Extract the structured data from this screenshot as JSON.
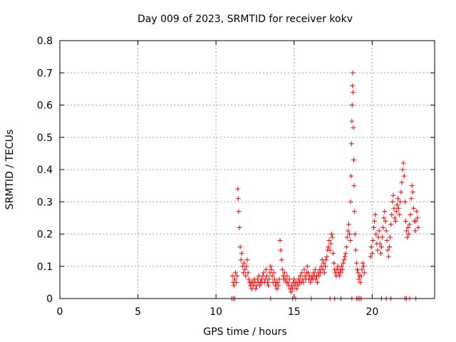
{
  "chart_data": {
    "type": "scatter",
    "title": "Day 009 of 2023, SRMTID for receiver kokv",
    "xlabel": "GPS time / hours",
    "ylabel": "SRMTID / TECUs",
    "xlim": [
      0,
      24
    ],
    "ylim": [
      0,
      0.8
    ],
    "x_ticks": [
      0,
      5,
      10,
      15,
      20
    ],
    "y_ticks": [
      0,
      0.1,
      0.2,
      0.3,
      0.4,
      0.5,
      0.6,
      0.7,
      0.8
    ],
    "x_tick_labels": [
      "0",
      "5",
      "10",
      "15",
      "20"
    ],
    "y_tick_labels": [
      "0",
      "0.1",
      "0.2",
      "0.3",
      "0.4",
      "0.5",
      "0.6",
      "0.7",
      "0.8"
    ],
    "grid": true,
    "marker": "+",
    "color": "#ff0000",
    "series": [
      {
        "name": "SRMTID",
        "points": [
          [
            11.05,
            0.07
          ],
          [
            11.1,
            0.05
          ],
          [
            11.15,
            0.04
          ],
          [
            11.2,
            0.06
          ],
          [
            11.25,
            0.08
          ],
          [
            11.3,
            0.05
          ],
          [
            11.35,
            0.07
          ],
          [
            11.4,
            0.34
          ],
          [
            11.42,
            0.31
          ],
          [
            11.45,
            0.27
          ],
          [
            11.5,
            0.22
          ],
          [
            11.55,
            0.16
          ],
          [
            11.6,
            0.12
          ],
          [
            11.65,
            0.14
          ],
          [
            11.7,
            0.1
          ],
          [
            11.75,
            0.08
          ],
          [
            11.8,
            0.11
          ],
          [
            11.85,
            0.09
          ],
          [
            11.9,
            0.07
          ],
          [
            11.95,
            0.1
          ],
          [
            12.0,
            0.12
          ],
          [
            12.05,
            0.08
          ],
          [
            12.1,
            0.06
          ],
          [
            12.15,
            0.05
          ],
          [
            12.2,
            0.04
          ],
          [
            12.25,
            0.05
          ],
          [
            12.3,
            0.03
          ],
          [
            12.35,
            0.05
          ],
          [
            12.4,
            0.04
          ],
          [
            12.45,
            0.06
          ],
          [
            12.5,
            0.05
          ],
          [
            12.55,
            0.03
          ],
          [
            12.6,
            0.04
          ],
          [
            12.65,
            0.06
          ],
          [
            12.7,
            0.05
          ],
          [
            12.75,
            0.07
          ],
          [
            12.8,
            0.04
          ],
          [
            12.85,
            0.05
          ],
          [
            12.9,
            0.06
          ],
          [
            12.95,
            0.05
          ],
          [
            13.0,
            0.07
          ],
          [
            13.05,
            0.08
          ],
          [
            13.1,
            0.05
          ],
          [
            13.15,
            0.06
          ],
          [
            13.2,
            0.09
          ],
          [
            13.25,
            0.07
          ],
          [
            13.3,
            0.05
          ],
          [
            13.35,
            0.04
          ],
          [
            13.4,
            0.06
          ],
          [
            13.45,
            0.08
          ],
          [
            13.5,
            0.1
          ],
          [
            13.55,
            0.09
          ],
          [
            13.6,
            0.07
          ],
          [
            13.65,
            0.05
          ],
          [
            13.7,
            0.08
          ],
          [
            13.75,
            0.06
          ],
          [
            13.8,
            0.04
          ],
          [
            13.85,
            0.05
          ],
          [
            13.9,
            0.03
          ],
          [
            13.95,
            0.05
          ],
          [
            14.0,
            0.04
          ],
          [
            14.05,
            0.06
          ],
          [
            14.1,
            0.18
          ],
          [
            14.15,
            0.15
          ],
          [
            14.2,
            0.12
          ],
          [
            14.25,
            0.09
          ],
          [
            14.3,
            0.07
          ],
          [
            14.35,
            0.06
          ],
          [
            14.4,
            0.08
          ],
          [
            14.45,
            0.06
          ],
          [
            14.5,
            0.05
          ],
          [
            14.55,
            0.07
          ],
          [
            14.6,
            0.05
          ],
          [
            14.65,
            0.04
          ],
          [
            14.7,
            0.06
          ],
          [
            14.75,
            0.03
          ],
          [
            14.8,
            0.02
          ],
          [
            14.85,
            0.04
          ],
          [
            14.9,
            0.03
          ],
          [
            14.95,
            0.05
          ],
          [
            15.0,
            0.06
          ],
          [
            15.05,
            0.04
          ],
          [
            15.1,
            0.05
          ],
          [
            15.15,
            0.03
          ],
          [
            15.2,
            0.05
          ],
          [
            15.25,
            0.04
          ],
          [
            15.3,
            0.06
          ],
          [
            15.35,
            0.05
          ],
          [
            15.4,
            0.07
          ],
          [
            15.45,
            0.05
          ],
          [
            15.5,
            0.08
          ],
          [
            15.55,
            0.06
          ],
          [
            15.6,
            0.05
          ],
          [
            15.65,
            0.09
          ],
          [
            15.7,
            0.07
          ],
          [
            15.75,
            0.06
          ],
          [
            15.8,
            0.08
          ],
          [
            15.85,
            0.1
          ],
          [
            15.9,
            0.08
          ],
          [
            15.95,
            0.06
          ],
          [
            16.0,
            0.07
          ],
          [
            16.05,
            0.05
          ],
          [
            16.1,
            0.06
          ],
          [
            16.15,
            0.07
          ],
          [
            16.2,
            0.06
          ],
          [
            16.25,
            0.08
          ],
          [
            16.3,
            0.07
          ],
          [
            16.35,
            0.09
          ],
          [
            16.4,
            0.06
          ],
          [
            16.45,
            0.07
          ],
          [
            16.5,
            0.05
          ],
          [
            16.55,
            0.08
          ],
          [
            16.6,
            0.07
          ],
          [
            16.65,
            0.09
          ],
          [
            16.7,
            0.08
          ],
          [
            16.75,
            0.1
          ],
          [
            16.8,
            0.12
          ],
          [
            16.85,
            0.09
          ],
          [
            16.9,
            0.11
          ],
          [
            16.95,
            0.08
          ],
          [
            17.0,
            0.1
          ],
          [
            17.05,
            0.12
          ],
          [
            17.1,
            0.13
          ],
          [
            17.15,
            0.15
          ],
          [
            17.2,
            0.16
          ],
          [
            17.25,
            0.18
          ],
          [
            17.3,
            0.15
          ],
          [
            17.35,
            0.17
          ],
          [
            17.4,
            0.2
          ],
          [
            17.45,
            0.19
          ],
          [
            17.5,
            0.14
          ],
          [
            17.55,
            0.11
          ],
          [
            17.6,
            0.09
          ],
          [
            17.65,
            0.08
          ],
          [
            17.7,
            0.07
          ],
          [
            17.75,
            0.09
          ],
          [
            17.8,
            0.1
          ],
          [
            17.85,
            0.08
          ],
          [
            17.9,
            0.07
          ],
          [
            17.95,
            0.09
          ],
          [
            18.0,
            0.08
          ],
          [
            18.05,
            0.1
          ],
          [
            18.1,
            0.09
          ],
          [
            18.15,
            0.11
          ],
          [
            18.2,
            0.12
          ],
          [
            18.25,
            0.13
          ],
          [
            18.3,
            0.14
          ],
          [
            18.35,
            0.16
          ],
          [
            18.4,
            0.19
          ],
          [
            18.45,
            0.21
          ],
          [
            18.5,
            0.23
          ],
          [
            18.55,
            0.2
          ],
          [
            18.6,
            0.18
          ],
          [
            18.62,
            0.3
          ],
          [
            18.65,
            0.38
          ],
          [
            18.68,
            0.48
          ],
          [
            18.7,
            0.55
          ],
          [
            18.72,
            0.6
          ],
          [
            18.74,
            0.66
          ],
          [
            18.76,
            0.7
          ],
          [
            18.78,
            0.64
          ],
          [
            18.8,
            0.53
          ],
          [
            18.82,
            0.43
          ],
          [
            18.84,
            0.35
          ],
          [
            18.86,
            0.27
          ],
          [
            18.9,
            0.2
          ],
          [
            18.95,
            0.15
          ],
          [
            19.0,
            0.11
          ],
          [
            19.05,
            0.09
          ],
          [
            19.1,
            0.08
          ],
          [
            19.15,
            0.06
          ],
          [
            19.2,
            0.07
          ],
          [
            19.25,
            0.05
          ],
          [
            19.3,
            0.07
          ],
          [
            19.35,
            0.09
          ],
          [
            19.4,
            0.11
          ],
          [
            19.45,
            0.1
          ],
          [
            19.5,
            0.08
          ],
          [
            19.9,
            0.13
          ],
          [
            19.95,
            0.16
          ],
          [
            20.0,
            0.14
          ],
          [
            20.05,
            0.18
          ],
          [
            20.1,
            0.22
          ],
          [
            20.15,
            0.24
          ],
          [
            20.2,
            0.26
          ],
          [
            20.25,
            0.2
          ],
          [
            20.3,
            0.17
          ],
          [
            20.35,
            0.15
          ],
          [
            20.4,
            0.19
          ],
          [
            20.45,
            0.21
          ],
          [
            20.5,
            0.17
          ],
          [
            20.55,
            0.14
          ],
          [
            20.6,
            0.16
          ],
          [
            20.65,
            0.19
          ],
          [
            20.7,
            0.22
          ],
          [
            20.75,
            0.25
          ],
          [
            20.8,
            0.27
          ],
          [
            20.85,
            0.24
          ],
          [
            20.9,
            0.21
          ],
          [
            20.95,
            0.18
          ],
          [
            21.0,
            0.15
          ],
          [
            21.05,
            0.13
          ],
          [
            21.1,
            0.16
          ],
          [
            21.15,
            0.19
          ],
          [
            21.2,
            0.23
          ],
          [
            21.25,
            0.26
          ],
          [
            21.3,
            0.3
          ],
          [
            21.35,
            0.32
          ],
          [
            21.4,
            0.28
          ],
          [
            21.45,
            0.25
          ],
          [
            21.5,
            0.24
          ],
          [
            21.55,
            0.27
          ],
          [
            21.6,
            0.29
          ],
          [
            21.65,
            0.31
          ],
          [
            21.7,
            0.28
          ],
          [
            21.75,
            0.26
          ],
          [
            21.8,
            0.3
          ],
          [
            21.85,
            0.33
          ],
          [
            21.9,
            0.36
          ],
          [
            21.95,
            0.4
          ],
          [
            22.0,
            0.42
          ],
          [
            22.05,
            0.38
          ],
          [
            22.1,
            0.3
          ],
          [
            22.15,
            0.24
          ],
          [
            22.2,
            0.21
          ],
          [
            22.25,
            0.19
          ],
          [
            22.3,
            0.22
          ],
          [
            22.35,
            0.2
          ],
          [
            22.4,
            0.23
          ],
          [
            22.45,
            0.26
          ],
          [
            22.5,
            0.31
          ],
          [
            22.55,
            0.35
          ],
          [
            22.6,
            0.33
          ],
          [
            22.65,
            0.28
          ],
          [
            22.7,
            0.24
          ],
          [
            22.75,
            0.21
          ],
          [
            22.8,
            0.24
          ],
          [
            22.85,
            0.27
          ],
          [
            22.9,
            0.25
          ],
          [
            22.95,
            0.22
          ]
        ]
      }
    ],
    "zero_points_x": [
      11.0,
      11.1,
      11.2,
      13.5,
      14.9,
      15.1,
      16.1,
      17.3,
      17.6,
      18.0,
      18.7,
      19.0,
      19.1,
      19.2,
      19.3,
      20.6,
      20.9,
      21.2,
      22.1,
      22.2,
      22.4,
      22.8
    ]
  }
}
